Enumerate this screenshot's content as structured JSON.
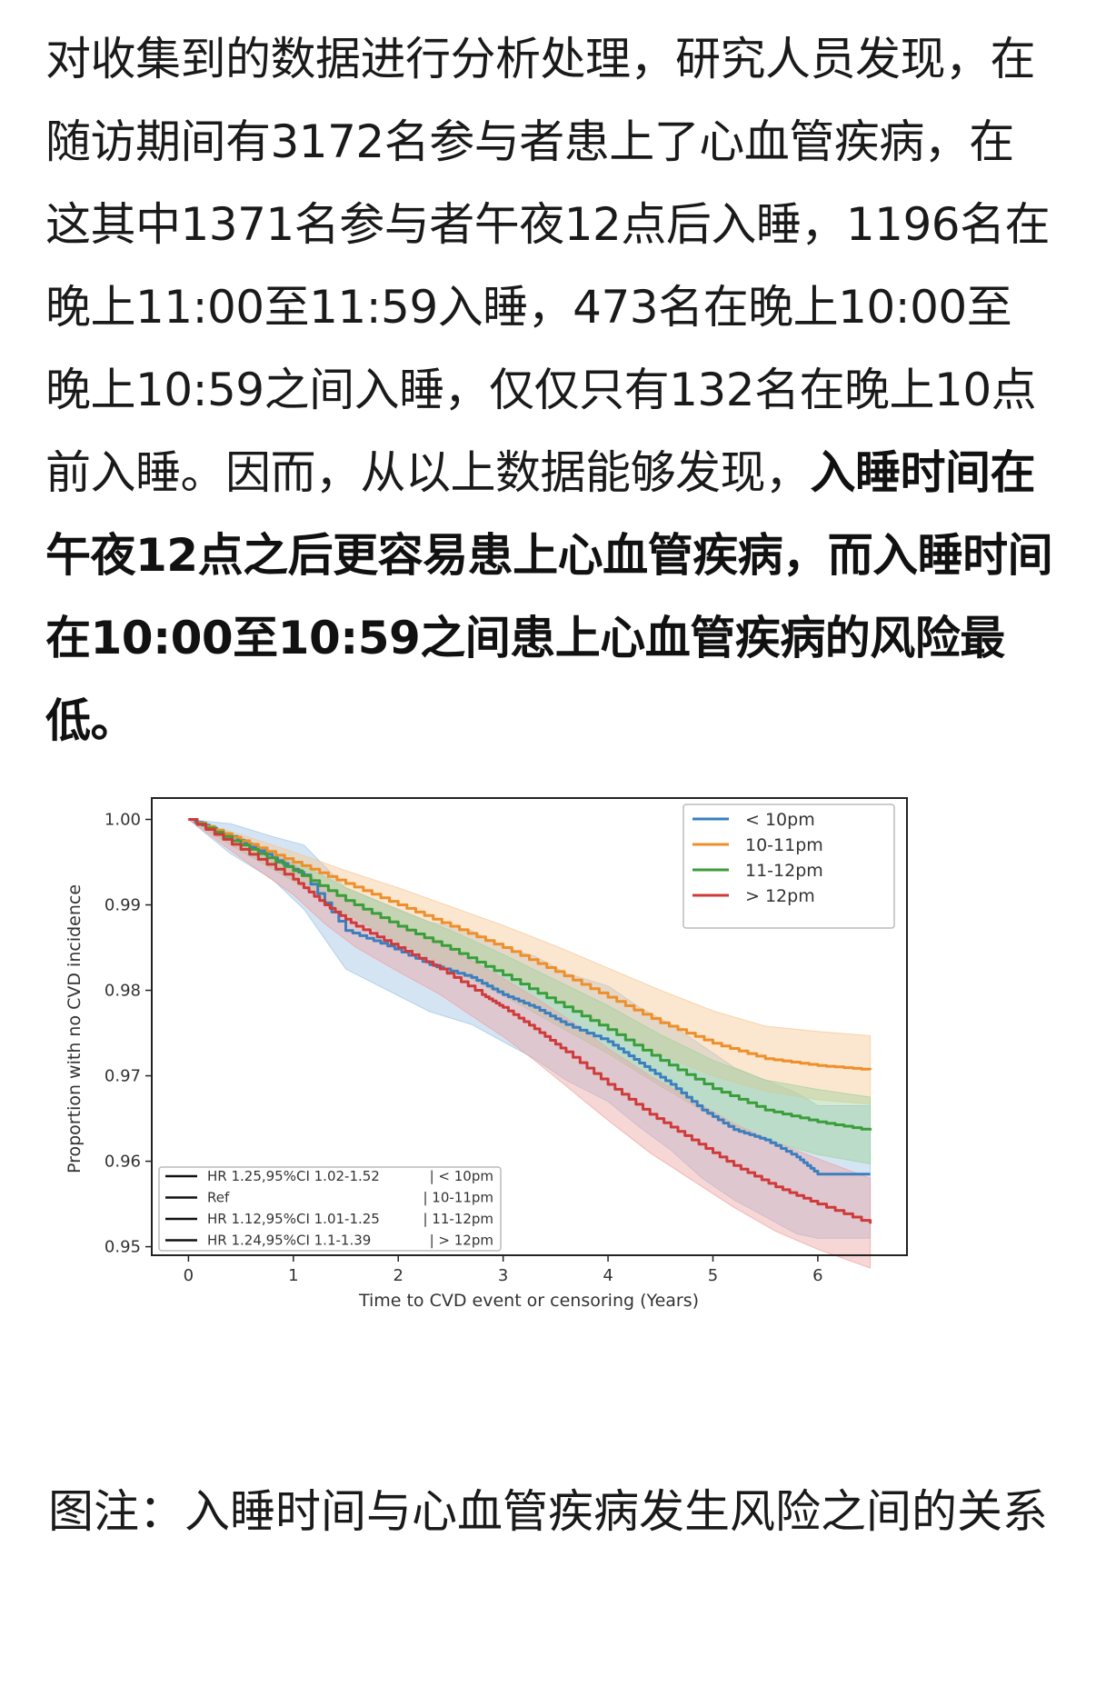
{
  "article": {
    "text_plain": "对收集到的数据进行分析处理，研究人员发现，在随访期间有3172名参与者患上了心血管疾病，在这其中1371名参与者午夜12点后入睡，1196名在晚上11:00至11:59入睡，473名在晚上10:00至晚上10:59之间入睡，仅仅只有132名在晚上10点前入睡。因而，从以上数据能够发现，",
    "text_bold": "入睡时间在午夜12点之后更容易患上心血管疾病，而入睡时间在10:00至10:59之间患上心血管疾病的风险最低。"
  },
  "caption": "图注：入睡时间与心血管疾病发生风险之间的关系",
  "chart_data": {
    "type": "line",
    "title": "",
    "xlabel": "Time to CVD event or censoring (Years)",
    "ylabel": "Proportion with no CVD incidence",
    "xlim": [
      -0.35,
      6.85
    ],
    "ylim": [
      0.949,
      1.0025
    ],
    "xticks": [
      0,
      1,
      2,
      3,
      4,
      5,
      6
    ],
    "yticks": [
      0.95,
      0.96,
      0.97,
      0.98,
      0.99,
      1.0
    ],
    "ytick_labels": [
      "0.95",
      "0.96",
      "0.97",
      "0.98",
      "0.99",
      "1.00"
    ],
    "grid": false,
    "legend_position": "top-right",
    "series": [
      {
        "name": "< 10pm",
        "color": "#3b7fbf",
        "band_color": "#9fc4e4",
        "x": [
          0,
          0.4,
          0.8,
          1.1,
          1.5,
          1.9,
          2.3,
          2.7,
          3.0,
          3.3,
          3.6,
          4.0,
          4.3,
          4.6,
          4.9,
          5.2,
          5.5,
          5.8,
          6.0,
          6.5
        ],
        "y": [
          1.0,
          0.998,
          0.9955,
          0.9935,
          0.987,
          0.9852,
          0.983,
          0.9815,
          0.9795,
          0.978,
          0.976,
          0.974,
          0.9715,
          0.969,
          0.966,
          0.9637,
          0.9625,
          0.9605,
          0.9585,
          0.9585
        ],
        "ci_low": [
          1.0,
          0.996,
          0.993,
          0.9895,
          0.9825,
          0.98,
          0.9775,
          0.976,
          0.974,
          0.972,
          0.9695,
          0.967,
          0.964,
          0.9613,
          0.958,
          0.9555,
          0.9535,
          0.9515,
          0.951,
          0.951
        ],
        "ci_high": [
          1.0,
          0.9995,
          0.998,
          0.997,
          0.992,
          0.99,
          0.988,
          0.987,
          0.985,
          0.984,
          0.982,
          0.9805,
          0.978,
          0.976,
          0.9735,
          0.971,
          0.9695,
          0.968,
          0.9665,
          0.9665
        ]
      },
      {
        "name": "10-11pm",
        "color": "#ef8f2a",
        "band_color": "#f7c894",
        "x": [
          0,
          0.5,
          1.0,
          1.5,
          2.0,
          2.5,
          3.0,
          3.5,
          4.0,
          4.5,
          5.0,
          5.5,
          6.0,
          6.5
        ],
        "y": [
          1.0,
          0.9975,
          0.995,
          0.9925,
          0.99,
          0.9875,
          0.985,
          0.9822,
          0.9792,
          0.9762,
          0.9738,
          0.972,
          0.9712,
          0.9707
        ],
        "ci_low": [
          1.0,
          0.9968,
          0.9938,
          0.991,
          0.988,
          0.9852,
          0.9824,
          0.9792,
          0.9758,
          0.9725,
          0.97,
          0.9682,
          0.9672,
          0.9667
        ],
        "ci_high": [
          1.0,
          0.9982,
          0.9962,
          0.994,
          0.992,
          0.9898,
          0.9876,
          0.9852,
          0.9826,
          0.98,
          0.9776,
          0.9758,
          0.9752,
          0.9747
        ]
      },
      {
        "name": "11-12pm",
        "color": "#3a9e3a",
        "band_color": "#9fd29a",
        "x": [
          0,
          0.5,
          1.0,
          1.5,
          2.0,
          2.5,
          3.0,
          3.5,
          4.0,
          4.5,
          5.0,
          5.5,
          6.0,
          6.5
        ],
        "y": [
          1.0,
          0.997,
          0.994,
          0.9905,
          0.9875,
          0.9848,
          0.9818,
          0.9786,
          0.9754,
          0.9718,
          0.9685,
          0.966,
          0.9646,
          0.9636
        ],
        "ci_low": [
          1.0,
          0.9963,
          0.9928,
          0.989,
          0.9856,
          0.9826,
          0.9794,
          0.976,
          0.9726,
          0.9688,
          0.9652,
          0.9625,
          0.9608,
          0.9597
        ],
        "ci_high": [
          1.0,
          0.9977,
          0.9952,
          0.992,
          0.9894,
          0.987,
          0.9842,
          0.9812,
          0.9782,
          0.9748,
          0.9718,
          0.9695,
          0.9684,
          0.9675
        ]
      },
      {
        "name": "> 12pm",
        "color": "#cf3a3a",
        "band_color": "#eda3a3",
        "x": [
          0,
          0.5,
          1.0,
          1.3,
          1.6,
          2.0,
          2.4,
          2.8,
          3.0,
          3.3,
          3.6,
          4.0,
          4.4,
          4.8,
          5.2,
          5.6,
          6.0,
          6.5
        ],
        "y": [
          1.0,
          0.9965,
          0.993,
          0.99,
          0.9875,
          0.985,
          0.9825,
          0.9795,
          0.978,
          0.9755,
          0.9728,
          0.969,
          0.9655,
          0.9625,
          0.9595,
          0.957,
          0.955,
          0.9527
        ],
        "ci_low": [
          1.0,
          0.9955,
          0.9912,
          0.9878,
          0.985,
          0.9822,
          0.9795,
          0.9762,
          0.9746,
          0.9718,
          0.9688,
          0.9648,
          0.961,
          0.9578,
          0.9546,
          0.9518,
          0.9497,
          0.9475
        ],
        "ci_high": [
          1.0,
          0.9975,
          0.9948,
          0.9922,
          0.99,
          0.9878,
          0.9855,
          0.9828,
          0.9814,
          0.9792,
          0.9768,
          0.9732,
          0.97,
          0.9672,
          0.9644,
          0.9622,
          0.9603,
          0.958
        ]
      }
    ],
    "legend": [
      "< 10pm",
      "10-11pm",
      "11-12pm",
      "> 12pm"
    ],
    "annotation_box": [
      {
        "label": "HR 1.25,95%CI 1.02-1.52",
        "group": "| < 10pm"
      },
      {
        "label": "Ref",
        "group": "| 10-11pm"
      },
      {
        "label": "HR 1.12,95%CI 1.01-1.25",
        "group": "| 11-12pm"
      },
      {
        "label": "HR 1.24,95%CI 1.1-1.39",
        "group": "| > 12pm"
      }
    ]
  }
}
